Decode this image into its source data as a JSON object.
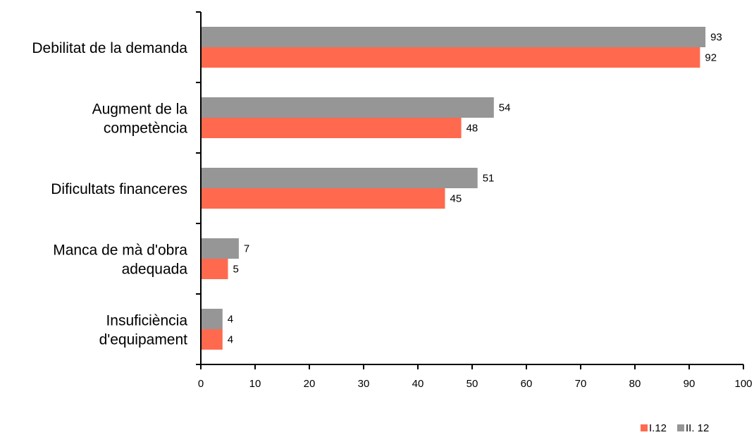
{
  "chart_data": {
    "type": "bar",
    "orientation": "horizontal",
    "categories": [
      [
        "Debilitat de la demanda"
      ],
      [
        "Augment de la",
        "competència"
      ],
      [
        "Dificultats financeres"
      ],
      [
        "Manca de mà d'obra",
        "adequada"
      ],
      [
        "Insuficiència",
        "d'equipament"
      ]
    ],
    "series": [
      {
        "name": "II. 12",
        "color": "#969696",
        "values": [
          93,
          54,
          51,
          7,
          4
        ]
      },
      {
        "name": "I.12",
        "color": "#ff6a4f",
        "values": [
          92,
          48,
          45,
          5,
          4
        ]
      }
    ],
    "xlim": [
      0,
      100
    ],
    "xticks": [
      0,
      10,
      20,
      30,
      40,
      50,
      60,
      70,
      80,
      90,
      100
    ],
    "legend": {
      "placement": "bottom-right",
      "order": [
        "I.12",
        "II. 12"
      ]
    },
    "grid": false
  }
}
